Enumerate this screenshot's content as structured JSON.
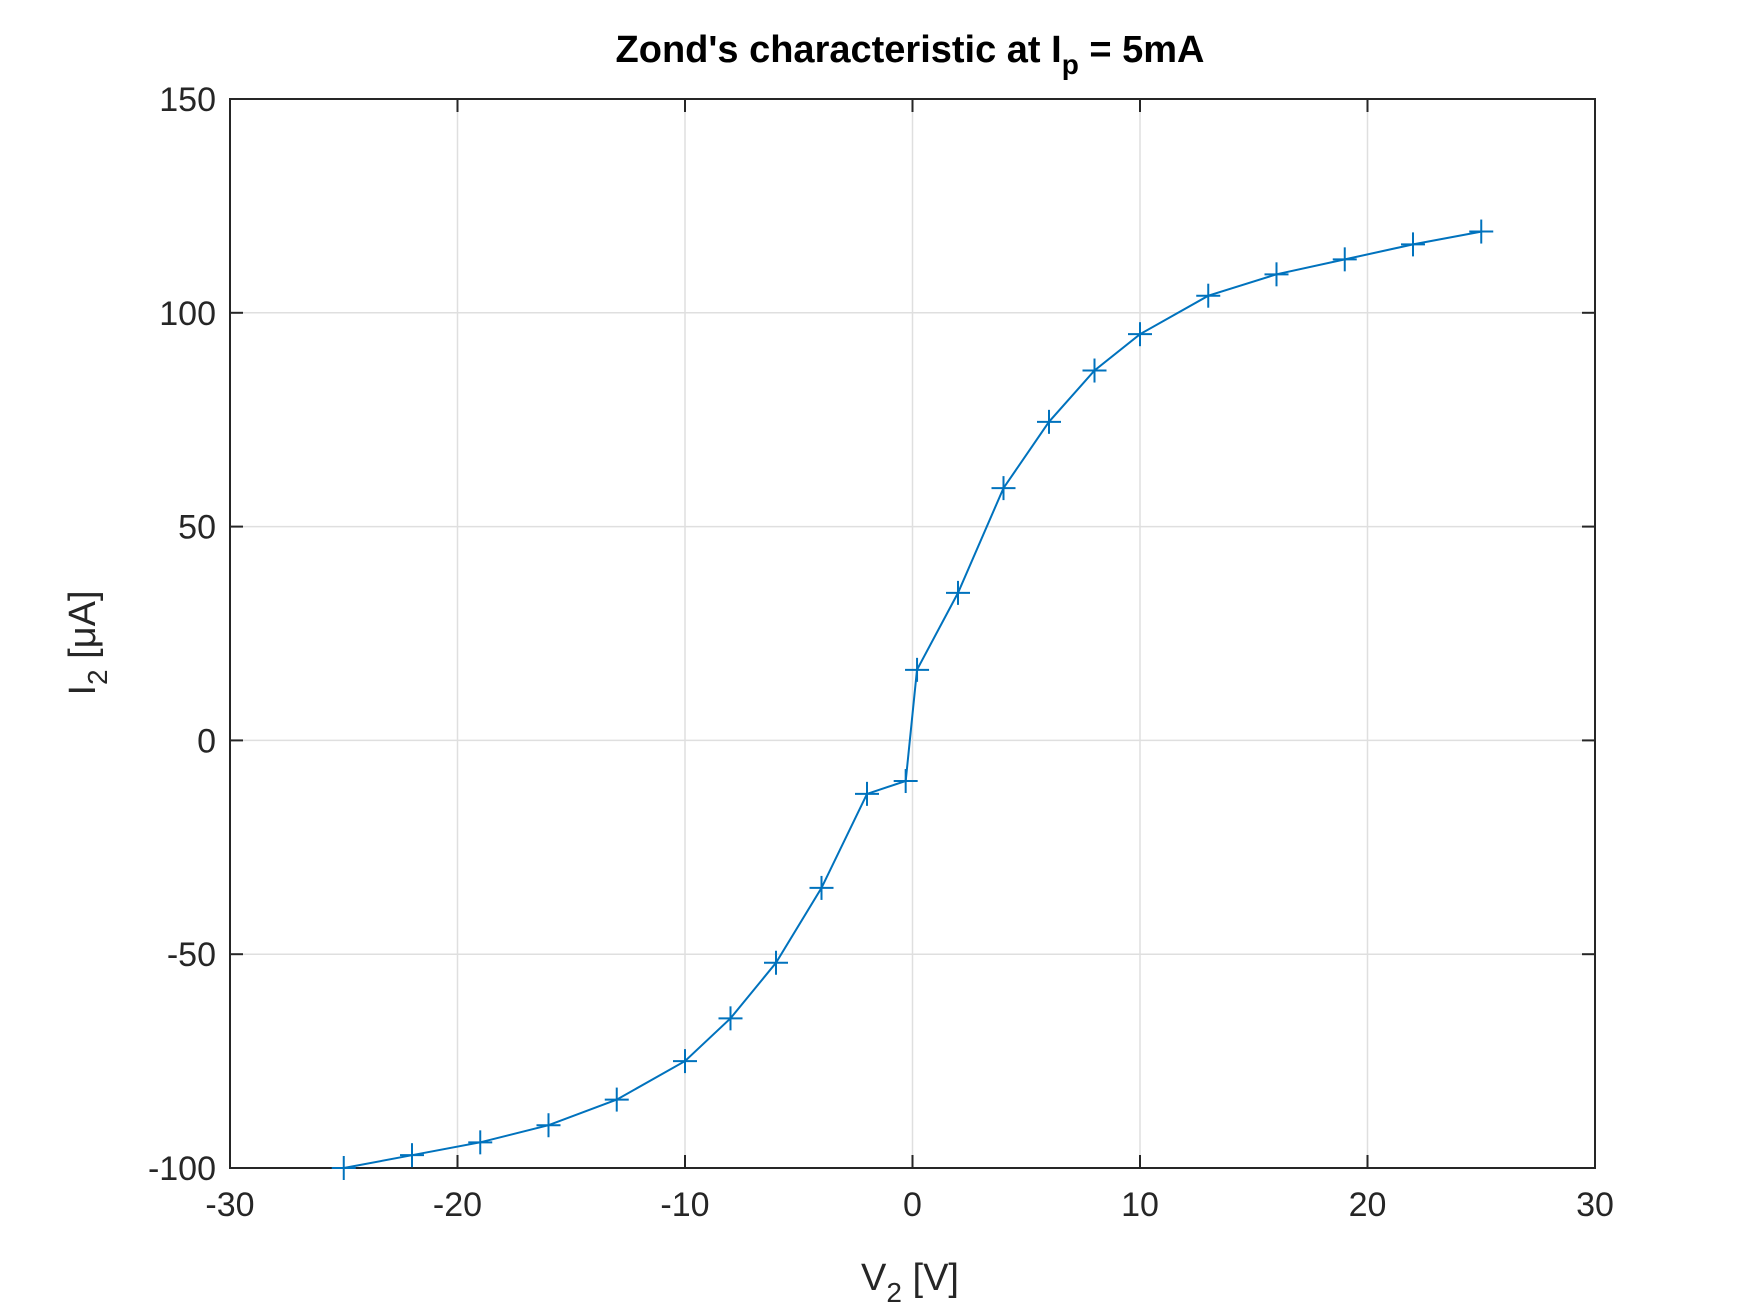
{
  "chart_data": {
    "type": "line",
    "title": {
      "main": "Zond's characteristic at I",
      "subscript": "p",
      "suffix": " = 5mA"
    },
    "xlabel": {
      "main": "V",
      "subscript": "2",
      "suffix": " [V]"
    },
    "ylabel": {
      "main": "I",
      "subscript": "2",
      "suffix": " [μA]"
    },
    "xlim": [
      -30,
      30
    ],
    "ylim": [
      -100,
      150
    ],
    "xticks": [
      -30,
      -20,
      -10,
      0,
      10,
      20,
      30
    ],
    "yticks": [
      -100,
      -50,
      0,
      50,
      100,
      150
    ],
    "xtick_labels": [
      "-30",
      "-20",
      "-10",
      "0",
      "10",
      "20",
      "30"
    ],
    "ytick_labels": [
      "-100",
      "-50",
      "0",
      "50",
      "100",
      "150"
    ],
    "grid": true,
    "marker": "plus",
    "line_color": "#0072BD",
    "series": [
      {
        "x": [
          -25,
          -22,
          -19,
          -16,
          -13,
          -10,
          -8,
          -6,
          -4,
          -2,
          -0.3,
          0.2,
          2,
          4,
          6,
          8,
          10,
          13,
          16,
          19,
          22,
          25
        ],
        "y": [
          -100,
          -97,
          -94,
          -90,
          -84,
          -75,
          -65,
          -52,
          -34.5,
          -12.5,
          -9.5,
          16.5,
          34.5,
          59,
          74.5,
          86.5,
          95,
          104,
          109,
          112.5,
          116,
          119
        ]
      }
    ]
  }
}
